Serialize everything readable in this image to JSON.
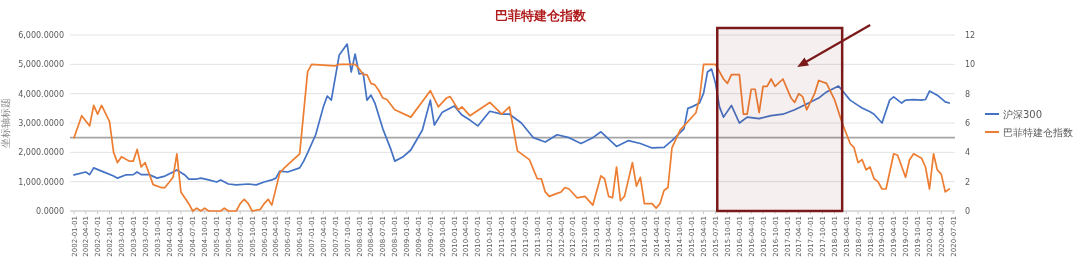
{
  "chart_data": {
    "type": "line",
    "title": "巴菲特建仓指数",
    "ylabel": "坐标轴标题",
    "xlim": [
      "2001-12-01",
      "2020-07-15"
    ],
    "xticks": [
      "2002-01-01",
      "2002-04-01",
      "2002-07-01",
      "2002-10-01",
      "2003-01-01",
      "2003-04-01",
      "2003-07-01",
      "2003-10-01",
      "2004-01-01",
      "2004-04-01",
      "2004-07-01",
      "2004-10-01",
      "2005-01-01",
      "2005-04-01",
      "2005-07-01",
      "2005-10-01",
      "2006-01-01",
      "2006-04-01",
      "2006-07-01",
      "2006-10-01",
      "2007-01-01",
      "2007-04-01",
      "2007-07-01",
      "2007-10-01",
      "2008-01-01",
      "2008-04-01",
      "2008-07-01",
      "2008-10-01",
      "2009-01-01",
      "2009-04-01",
      "2009-07-01",
      "2009-10-01",
      "2010-01-01",
      "2010-04-01",
      "2010-07-01",
      "2010-10-01",
      "2011-01-01",
      "2011-04-01",
      "2011-07-01",
      "2011-10-01",
      "2012-01-01",
      "2012-04-01",
      "2012-07-01",
      "2012-10-01",
      "2013-01-01",
      "2013-04-01",
      "2013-07-01",
      "2013-10-01",
      "2014-01-01",
      "2014-04-01",
      "2014-07-01",
      "2014-10-01",
      "2015-01-01",
      "2015-04-01",
      "2015-07-01",
      "2015-10-01",
      "2016-01-01",
      "2016-04-01",
      "2016-07-01",
      "2016-10-01",
      "2017-01-01",
      "2017-04-01",
      "2017-07-01",
      "2017-10-01",
      "2018-01-01",
      "2018-04-01",
      "2018-07-01",
      "2018-10-01",
      "2019-01-01",
      "2019-04-01",
      "2019-07-01",
      "2019-10-01",
      "2020-01-01",
      "2020-04-01",
      "2020-07-01"
    ],
    "ylim": [
      0,
      6000
    ],
    "yticks": [
      {
        "value": 0,
        "label": "0.0000"
      },
      {
        "value": 1000,
        "label": "1,000.0000"
      },
      {
        "value": 2000,
        "label": "2,000.0000"
      },
      {
        "value": 3000,
        "label": "3,000.0000"
      },
      {
        "value": 4000,
        "label": "4,000.0000"
      },
      {
        "value": 5000,
        "label": "5,000.0000"
      },
      {
        "value": 6000,
        "label": "6,000.0000"
      }
    ],
    "y2lim": [
      0,
      12
    ],
    "y2ticks": [
      0,
      2,
      4,
      6,
      8,
      10,
      12
    ],
    "grid": "y",
    "legend": "right",
    "series": [
      {
        "name": "沪深300",
        "color": "#4472c4",
        "x": [
          "2002-01",
          "2002-04",
          "2002-05",
          "2002-06",
          "2002-08",
          "2002-11",
          "2002-12",
          "2003-02",
          "2003-04",
          "2003-05",
          "2003-06",
          "2003-08",
          "2003-10",
          "2003-12",
          "2004-02",
          "2004-03",
          "2004-05",
          "2004-06",
          "2004-08",
          "2004-09",
          "2004-11",
          "2005-01",
          "2005-02",
          "2005-04",
          "2005-06",
          "2005-09",
          "2005-11",
          "2006-01",
          "2006-03",
          "2006-04",
          "2006-05",
          "2006-07",
          "2006-10",
          "2006-11",
          "2006-12",
          "2007-02",
          "2007-04",
          "2007-05",
          "2007-06",
          "2007-08",
          "2007-10",
          "2007-11",
          "2007-12",
          "2008-01",
          "2008-02",
          "2008-03",
          "2008-04",
          "2008-05",
          "2008-07",
          "2008-09",
          "2008-10",
          "2008-12",
          "2009-02",
          "2009-05",
          "2009-07",
          "2009-08",
          "2009-10",
          "2010-01",
          "2010-03",
          "2010-05",
          "2010-07",
          "2010-10",
          "2011-01",
          "2011-03",
          "2011-06",
          "2011-09",
          "2011-12",
          "2012-03",
          "2012-06",
          "2012-09",
          "2012-12",
          "2013-02",
          "2013-06",
          "2013-09",
          "2013-12",
          "2014-03",
          "2014-06",
          "2014-08",
          "2014-11",
          "2014-12",
          "2015-01",
          "2015-03",
          "2015-04",
          "2015-05",
          "2015-06",
          "2015-07",
          "2015-08",
          "2015-09",
          "2015-11",
          "2016-01",
          "2016-03",
          "2016-06",
          "2016-09",
          "2016-12",
          "2017-03",
          "2017-06",
          "2017-09",
          "2017-11",
          "2018-02",
          "2018-05",
          "2018-07",
          "2018-08",
          "2018-10",
          "2018-11",
          "2019-01",
          "2019-03",
          "2019-04",
          "2019-06",
          "2019-07",
          "2019-09",
          "2019-11",
          "2019-12",
          "2020-01",
          "2020-03",
          "2020-05",
          "2020-06"
        ],
        "values": [
          1230,
          1330,
          1240,
          1470,
          1360,
          1190,
          1120,
          1230,
          1240,
          1330,
          1240,
          1240,
          1120,
          1190,
          1330,
          1400,
          1230,
          1090,
          1090,
          1120,
          1060,
          990,
          1060,
          920,
          890,
          920,
          890,
          990,
          1060,
          1120,
          1360,
          1330,
          1470,
          1700,
          1980,
          2600,
          3550,
          3920,
          3780,
          5320,
          5690,
          4740,
          5350,
          4670,
          4700,
          3780,
          3950,
          3680,
          2800,
          2100,
          1700,
          1840,
          2080,
          2760,
          3780,
          2930,
          3370,
          3580,
          3270,
          3100,
          2900,
          3400,
          3300,
          3300,
          3000,
          2500,
          2350,
          2600,
          2500,
          2300,
          2500,
          2700,
          2200,
          2400,
          2300,
          2150,
          2170,
          2400,
          2800,
          3500,
          3550,
          3680,
          4020,
          4740,
          4840,
          4360,
          3550,
          3200,
          3600,
          3000,
          3200,
          3150,
          3250,
          3300,
          3450,
          3650,
          3850,
          4060,
          4260,
          3780,
          3600,
          3510,
          3380,
          3300,
          3000,
          3780,
          3890,
          3680,
          3780,
          3800,
          3780,
          3800,
          4090,
          3950,
          3720,
          3680
        ]
      },
      {
        "name": "巴菲特建仓指数",
        "color": "#ed7d31",
        "axis": "y2",
        "x": [
          "2002-01",
          "2002-03",
          "2002-05",
          "2002-06",
          "2002-07",
          "2002-08",
          "2002-10",
          "2002-11",
          "2002-12",
          "2003-01",
          "2003-03",
          "2003-04",
          "2003-05",
          "2003-06",
          "2003-07",
          "2003-09",
          "2003-11",
          "2003-12",
          "2004-02",
          "2004-03",
          "2004-04",
          "2004-06",
          "2004-07",
          "2004-08",
          "2004-09",
          "2004-10",
          "2004-11",
          "2005-02",
          "2005-03",
          "2005-04",
          "2005-06",
          "2005-07",
          "2005-08",
          "2005-09",
          "2005-10",
          "2005-12",
          "2006-01",
          "2006-02",
          "2006-03",
          "2006-05",
          "2006-06",
          "2006-08",
          "2006-10",
          "2006-12",
          "2007-01",
          "2007-07",
          "2007-08",
          "2007-12",
          "2008-01",
          "2008-02",
          "2008-03",
          "2008-04",
          "2008-05",
          "2008-06",
          "2008-07",
          "2008-08",
          "2008-10",
          "2009-02",
          "2009-07",
          "2009-09",
          "2009-11",
          "2009-12",
          "2010-02",
          "2010-03",
          "2010-05",
          "2010-10",
          "2011-01",
          "2011-03",
          "2011-05",
          "2011-08",
          "2011-10",
          "2011-11",
          "2011-12",
          "2012-01",
          "2012-03",
          "2012-04",
          "2012-05",
          "2012-06",
          "2012-08",
          "2012-10",
          "2012-12",
          "2013-02",
          "2013-03",
          "2013-04",
          "2013-05",
          "2013-06",
          "2013-07",
          "2013-08",
          "2013-10",
          "2013-11",
          "2013-12",
          "2014-01",
          "2014-02",
          "2014-03",
          "2014-04",
          "2014-05",
          "2014-06",
          "2014-07",
          "2014-08",
          "2014-10",
          "2015-02",
          "2015-03",
          "2015-04",
          "2015-07",
          "2015-08",
          "2015-09",
          "2015-10",
          "2015-11",
          "2016-01",
          "2016-02",
          "2016-03",
          "2016-04",
          "2016-05",
          "2016-06",
          "2016-07",
          "2016-08",
          "2016-09",
          "2016-10",
          "2016-12",
          "2017-02",
          "2017-03",
          "2017-04",
          "2017-05",
          "2017-06",
          "2017-08",
          "2017-09",
          "2017-11",
          "2018-01",
          "2018-03",
          "2018-05",
          "2018-06",
          "2018-07",
          "2018-08",
          "2018-09",
          "2018-10",
          "2018-11",
          "2018-12",
          "2019-01",
          "2019-02",
          "2019-04",
          "2019-05",
          "2019-07",
          "2019-08",
          "2019-09",
          "2019-11",
          "2019-12",
          "2020-01",
          "2020-02",
          "2020-03",
          "2020-04",
          "2020-05",
          "2020-06"
        ],
        "values": [
          5.0,
          6.5,
          5.8,
          7.2,
          6.6,
          7.2,
          6.1,
          4.0,
          3.3,
          3.7,
          3.4,
          3.4,
          4.2,
          3.0,
          3.3,
          1.8,
          1.6,
          1.6,
          2.3,
          3.9,
          1.3,
          0.5,
          0.0,
          0.2,
          0.0,
          0.2,
          0.0,
          0.0,
          0.2,
          0.0,
          0.0,
          0.5,
          0.8,
          0.5,
          0.0,
          0.1,
          0.5,
          0.8,
          0.4,
          2.6,
          2.9,
          3.4,
          3.9,
          9.5,
          10.0,
          9.9,
          10.0,
          10.0,
          9.7,
          9.3,
          9.3,
          8.7,
          8.6,
          8.2,
          7.7,
          7.6,
          6.9,
          6.4,
          8.2,
          7.1,
          7.7,
          7.8,
          6.9,
          7.1,
          6.5,
          7.4,
          6.6,
          7.1,
          4.1,
          3.5,
          2.2,
          2.2,
          1.3,
          1.0,
          1.2,
          1.3,
          1.6,
          1.5,
          0.9,
          1.0,
          0.4,
          2.4,
          2.2,
          1.0,
          0.9,
          3.0,
          0.7,
          1.0,
          3.3,
          1.7,
          2.3,
          0.5,
          0.5,
          0.5,
          0.2,
          0.5,
          1.4,
          1.6,
          4.3,
          5.5,
          6.7,
          7.7,
          10.0,
          10.0,
          9.5,
          9.0,
          8.7,
          9.3,
          9.3,
          6.6,
          6.6,
          8.3,
          8.3,
          6.7,
          8.5,
          8.5,
          9.0,
          8.5,
          9.0,
          7.7,
          7.4,
          8.0,
          7.8,
          6.9,
          8.0,
          8.9,
          8.7,
          7.6,
          6.0,
          4.6,
          4.3,
          3.3,
          3.5,
          2.8,
          3.0,
          2.2,
          2.0,
          1.5,
          1.5,
          3.9,
          3.8,
          2.3,
          3.5,
          3.9,
          3.6,
          3.0,
          1.5,
          3.9,
          2.8,
          2.5,
          1.3,
          1.5
        ]
      }
    ],
    "ref_lines": [
      {
        "axis": "y2",
        "value": 5,
        "color": "#a5a5a5"
      }
    ],
    "bands": [
      {
        "axis": "x",
        "from": "2015-07-15",
        "to": "2018-03-01",
        "color": "#7b1a1a"
      }
    ]
  }
}
